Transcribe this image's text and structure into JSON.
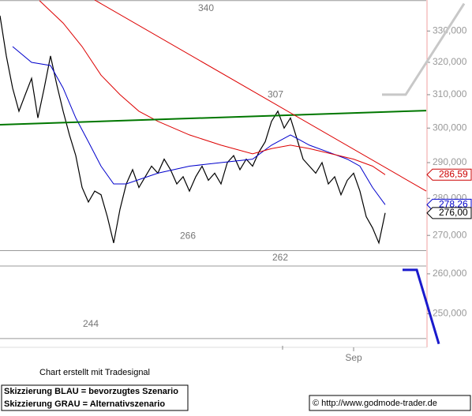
{
  "chart_data": {
    "type": "line",
    "log_y": true,
    "xlim": [
      0,
      67.5
    ],
    "ylim": [
      241.9,
      340.2
    ],
    "yticks": [
      {
        "value": 250,
        "label": "250,000"
      },
      {
        "value": 260,
        "label": "260,000"
      },
      {
        "value": 270,
        "label": "270,000"
      },
      {
        "value": 280,
        "label": "280,000"
      },
      {
        "value": 290,
        "label": "290,000"
      },
      {
        "value": 300,
        "label": "300,000"
      },
      {
        "value": 310,
        "label": "310,000"
      },
      {
        "value": 320,
        "label": "320,000"
      },
      {
        "value": 330,
        "label": "330,000"
      }
    ],
    "xticks": [
      {
        "value": 56,
        "label": "Sep"
      }
    ],
    "series": [
      {
        "color": "#000000",
        "x": [
          0,
          1,
          2,
          3,
          4,
          5,
          6,
          7,
          8,
          9,
          10,
          11,
          12,
          13,
          14,
          15,
          16,
          17,
          18,
          19,
          20,
          21,
          22,
          23,
          24,
          25,
          26,
          27,
          28,
          29,
          30,
          31,
          32,
          33,
          34,
          35,
          36,
          37,
          38,
          39,
          40,
          41,
          42,
          43,
          44,
          45,
          46,
          47,
          48,
          49,
          50,
          51,
          52,
          53,
          54,
          55,
          56,
          57,
          58,
          59,
          60,
          61
        ],
        "values": [
          335,
          322,
          312,
          305,
          310,
          315,
          303,
          312,
          322,
          313,
          305,
          298,
          292,
          283,
          279,
          282,
          281,
          275,
          268,
          277,
          284,
          288,
          283,
          286,
          289,
          287,
          291,
          288,
          284,
          286,
          282,
          286,
          289,
          285,
          287,
          284,
          290,
          292,
          288,
          291,
          289,
          293,
          296,
          302,
          305,
          300,
          303,
          297,
          291,
          289,
          287,
          290,
          284,
          286,
          281,
          285,
          287,
          282,
          275,
          272,
          268,
          276
        ]
      },
      {
        "color": "#0000cc",
        "x": [
          2,
          5,
          8,
          10,
          12,
          14,
          16,
          18,
          20,
          25,
          30,
          35,
          40,
          43,
          46,
          49,
          52,
          55,
          57,
          59,
          61
        ],
        "values": [
          325,
          320,
          319,
          312,
          303,
          296,
          289,
          284,
          284,
          287,
          289,
          290,
          291,
          295,
          298,
          295,
          293,
          291,
          289,
          283,
          278.26
        ]
      },
      {
        "color": "#dd0000",
        "x": [
          6.25,
          10,
          13,
          16,
          19,
          22,
          25,
          30,
          35,
          40,
          43,
          46,
          49,
          52.5,
          56,
          59,
          61
        ],
        "values": [
          340,
          332.6,
          325,
          316,
          310,
          305,
          302,
          298,
          295,
          292.5,
          294,
          295,
          294,
          292.5,
          291,
          289,
          286.59
        ]
      },
      {
        "color": "#007700",
        "x": [
          0,
          67.5
        ],
        "values": [
          301,
          305.2
        ]
      },
      {
        "color": "#dd0000",
        "x": [
          15,
          67.5
        ],
        "values": [
          340.2,
          282
        ]
      },
      {
        "color": "#c8c8c8",
        "x": [
          60.5,
          64.25,
          73.5
        ],
        "values": [
          310,
          310,
          339
        ]
      },
      {
        "color": "#1a1acc",
        "x": [
          63.75,
          66,
          69.5
        ],
        "values": [
          261,
          261,
          242.7
        ]
      }
    ],
    "levels": [
      340,
      266,
      262,
      244
    ],
    "peak": 307,
    "price_tags": [
      {
        "value": 286.59,
        "label": "286,59",
        "color": "#cc0000"
      },
      {
        "value": 278.26,
        "label": "278,26",
        "color": "#0000cc"
      },
      {
        "value": 276.0,
        "label": "276,00",
        "color": "#000000"
      }
    ],
    "credit": "Chart erstellt mit Tradesignal",
    "notes": [
      "Skizzierung BLAU = bevorzugtes Szenario",
      "Skizzierung GRAU = Alternativszenario"
    ],
    "copyright": "© http://www.godmode-trader.de"
  }
}
